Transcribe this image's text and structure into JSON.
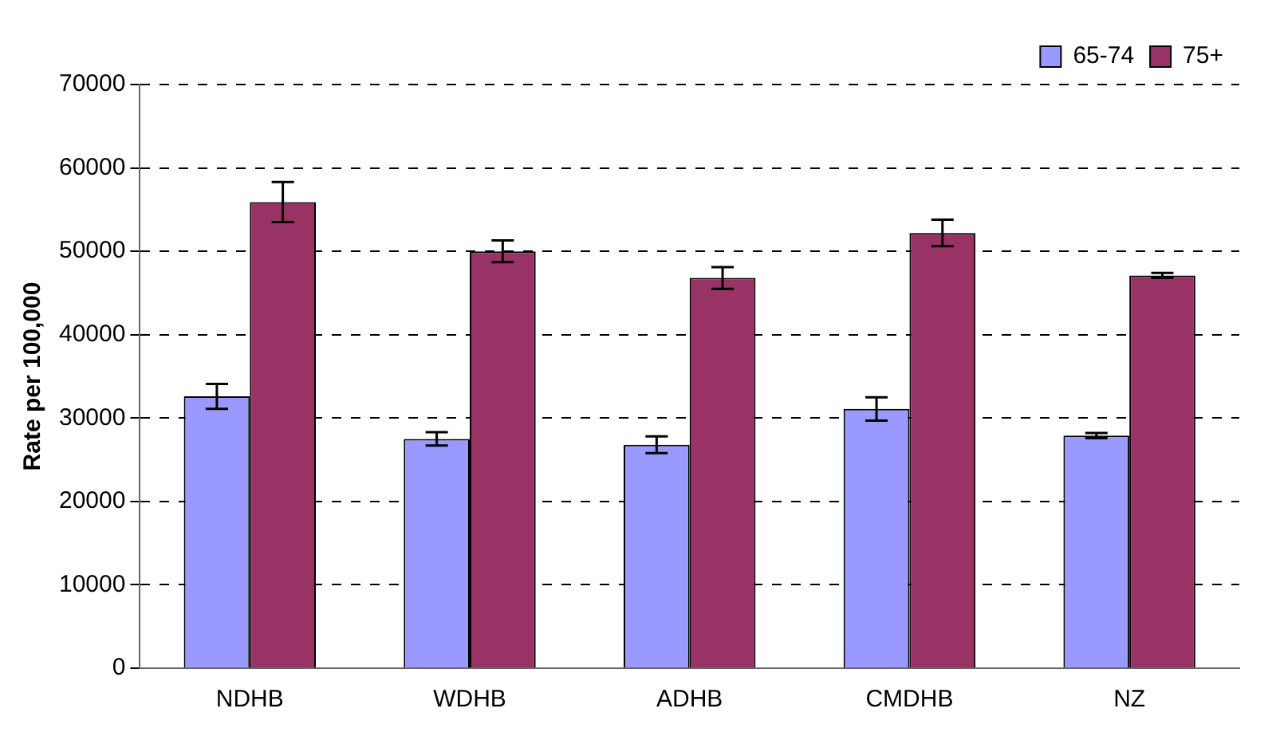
{
  "chart_data": {
    "type": "bar",
    "ylabel": "Rate per 100,000",
    "categories": [
      "NDHB",
      "WDHB",
      "ADHB",
      "CMDHB",
      "NZ"
    ],
    "series": [
      {
        "name": "65-74",
        "color": "#9999ff",
        "values": [
          32600,
          27500,
          26800,
          31100,
          27900
        ],
        "errors": [
          1500,
          800,
          1000,
          1400,
          300
        ]
      },
      {
        "name": "75+",
        "color": "#993366",
        "values": [
          55900,
          50000,
          46800,
          52200,
          47100
        ],
        "errors": [
          2400,
          1300,
          1300,
          1600,
          300
        ]
      }
    ],
    "ylim": [
      0,
      70000
    ],
    "yticks": [
      0,
      10000,
      20000,
      30000,
      40000,
      50000,
      60000,
      70000
    ],
    "grid": "y",
    "legend": "top right"
  }
}
